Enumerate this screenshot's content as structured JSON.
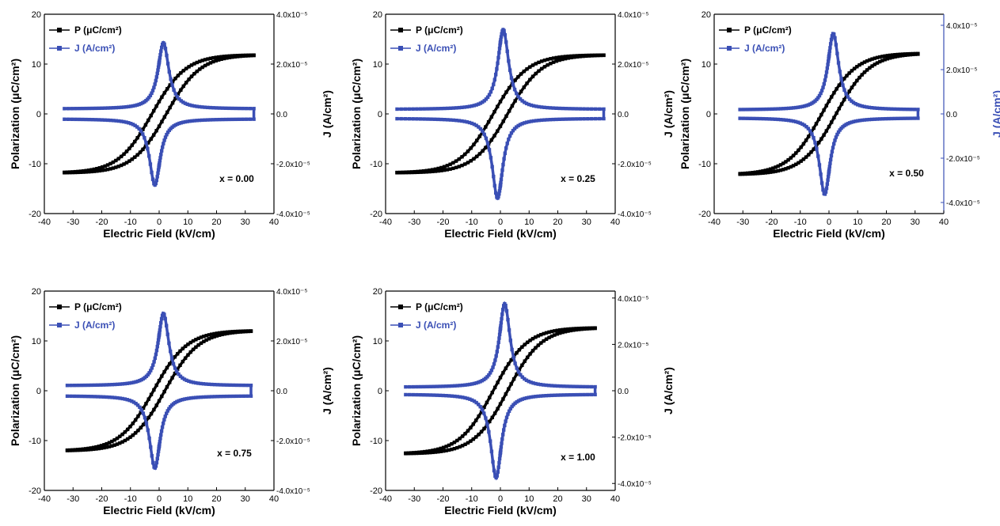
{
  "colors": {
    "polarization": "#000000",
    "current": "#3a4fb5"
  },
  "chart_data": [
    {
      "type": "line",
      "note": "x = 0.00",
      "xlabel": "Electric Field (kV/cm)",
      "ylabel": "Polarization (μC/cm²)",
      "y2label": "J (A/cm²)",
      "xlim": [
        -40,
        40
      ],
      "ylim": [
        -20,
        20
      ],
      "y2lim": [
        -4e-05,
        4e-05
      ],
      "x_ticks": [
        "-40",
        "-30",
        "-20",
        "-10",
        "0",
        "10",
        "20",
        "30",
        "40"
      ],
      "y_ticks": [
        "20",
        "10",
        "0",
        "-10",
        "-20"
      ],
      "y2_ticks": [
        "4.0x10⁻⁵",
        "2.0x10⁻⁵",
        "0.0",
        "-2.0x10⁻⁵",
        "-4.0x10⁻⁵"
      ],
      "legend": [
        {
          "name": "P (μC/cm²)"
        },
        {
          "name": "J (A/cm²)"
        }
      ],
      "legend_position": "top-left",
      "series": [
        {
          "name": "P (μC/cm²)",
          "axis": "left",
          "emax": 33,
          "pmax": 11.8,
          "ec": 2.5,
          "pr": 7.5
        },
        {
          "name": "J (A/cm²)",
          "axis": "right",
          "peak_x": 1.5,
          "peak": 2.65e-05,
          "end": 2e-06
        }
      ]
    },
    {
      "type": "line",
      "note": "x = 0.25",
      "xlabel": "Electric Field (kV/cm)",
      "ylabel": "Polarization (μC/cm²)",
      "y2label": "J (A/cm²)",
      "xlim": [
        -40,
        40
      ],
      "ylim": [
        -20,
        20
      ],
      "y2lim": [
        -4e-05,
        4e-05
      ],
      "x_ticks": [
        "-40",
        "-30",
        "-20",
        "-10",
        "0",
        "10",
        "20",
        "30",
        "40"
      ],
      "y_ticks": [
        "20",
        "10",
        "0",
        "-10",
        "-20"
      ],
      "y2_ticks": [
        "4.0x10⁻⁵",
        "2.0x10⁻⁵",
        "0.0",
        "-2.0x10⁻⁵",
        "-4.0x10⁻⁵"
      ],
      "legend": [
        {
          "name": "P (μC/cm²)"
        },
        {
          "name": "J (A/cm²)"
        }
      ],
      "legend_position": "top-left",
      "series": [
        {
          "name": "P (μC/cm²)",
          "axis": "left",
          "emax": 36,
          "pmax": 11.8,
          "ec": 2.5,
          "pr": 7.5
        },
        {
          "name": "J (A/cm²)",
          "axis": "right",
          "peak_x": 1.0,
          "peak": 3.2e-05,
          "end": 1.8e-06
        }
      ]
    },
    {
      "type": "line",
      "note": "x = 0.50",
      "xlabel": "Electric Field (kV/cm)",
      "ylabel": "Polarization (μC/cm²)",
      "y2label": "J (A/cm²)",
      "xlim": [
        -40,
        40
      ],
      "ylim": [
        -20,
        20
      ],
      "y2lim": [
        -4.5e-05,
        4.5e-05
      ],
      "x_ticks": [
        "-40",
        "-30",
        "-20",
        "-10",
        "0",
        "10",
        "20",
        "30",
        "40"
      ],
      "y_ticks": [
        "20",
        "10",
        "0",
        "-10",
        "-20"
      ],
      "y2_ticks": [
        "4.0x10⁻⁵",
        "2.0x10⁻⁵",
        "0.0",
        "-2.0x10⁻⁵",
        "-4.0x10⁻⁵"
      ],
      "legend": [
        {
          "name": "P (μC/cm²)"
        },
        {
          "name": "J (A/cm²)"
        }
      ],
      "legend_position": "top-left",
      "series": [
        {
          "name": "P (μC/cm²)",
          "axis": "left",
          "emax": 31,
          "pmax": 12.1,
          "ec": 2.5,
          "pr": 7.5
        },
        {
          "name": "J (A/cm²)",
          "axis": "right",
          "peak_x": 1.5,
          "peak": 3.45e-05,
          "end": 1.8e-06
        }
      ]
    },
    {
      "type": "line",
      "note": "x = 0.75",
      "xlabel": "Electric Field (kV/cm)",
      "ylabel": "Polarization (μC/cm²)",
      "y2label": "J (A/cm²)",
      "xlim": [
        -40,
        40
      ],
      "ylim": [
        -20,
        20
      ],
      "y2lim": [
        -4e-05,
        4e-05
      ],
      "x_ticks": [
        "-40",
        "-30",
        "-20",
        "-10",
        "0",
        "10",
        "20",
        "30",
        "40"
      ],
      "y_ticks": [
        "20",
        "10",
        "0",
        "-10",
        "-20"
      ],
      "y2_ticks": [
        "4.0x10⁻⁵",
        "2.0x10⁻⁵",
        "0.0",
        "-2.0x10⁻⁵",
        "-4.0x10⁻⁵"
      ],
      "legend": [
        {
          "name": "P (μC/cm²)"
        },
        {
          "name": "J (A/cm²)"
        }
      ],
      "legend_position": "top-left",
      "series": [
        {
          "name": "P (μC/cm²)",
          "axis": "left",
          "emax": 32,
          "pmax": 12.0,
          "ec": 2.0,
          "pr": 7.0
        },
        {
          "name": "J (A/cm²)",
          "axis": "right",
          "peak_x": 1.5,
          "peak": 2.9e-05,
          "end": 2e-06
        }
      ]
    },
    {
      "type": "line",
      "note": "x = 1.00",
      "xlabel": "Electric Field (kV/cm)",
      "ylabel": "Polarization (μC/cm²)",
      "y2label": "J (A/cm²)",
      "xlim": [
        -40,
        40
      ],
      "ylim": [
        -20,
        20
      ],
      "y2lim": [
        -4.3e-05,
        4.3e-05
      ],
      "x_ticks": [
        "-40",
        "-30",
        "-20",
        "-10",
        "0",
        "10",
        "20",
        "30",
        "40"
      ],
      "y_ticks": [
        "20",
        "10",
        "0",
        "-10",
        "-20"
      ],
      "y2_ticks": [
        "4.0x10⁻⁵",
        "2.0x10⁻⁵",
        "0.0",
        "-2.0x10⁻⁵",
        "-4.0x10⁻⁵"
      ],
      "legend": [
        {
          "name": "P (μC/cm²)"
        },
        {
          "name": "J (A/cm²)"
        }
      ],
      "legend_position": "top-left",
      "series": [
        {
          "name": "P (μC/cm²)",
          "axis": "left",
          "emax": 33,
          "pmax": 12.6,
          "ec": 2.5,
          "pr": 7.8
        },
        {
          "name": "J (A/cm²)",
          "axis": "right",
          "peak_x": 1.5,
          "peak": 3.6e-05,
          "end": 1.5e-06
        }
      ]
    }
  ]
}
